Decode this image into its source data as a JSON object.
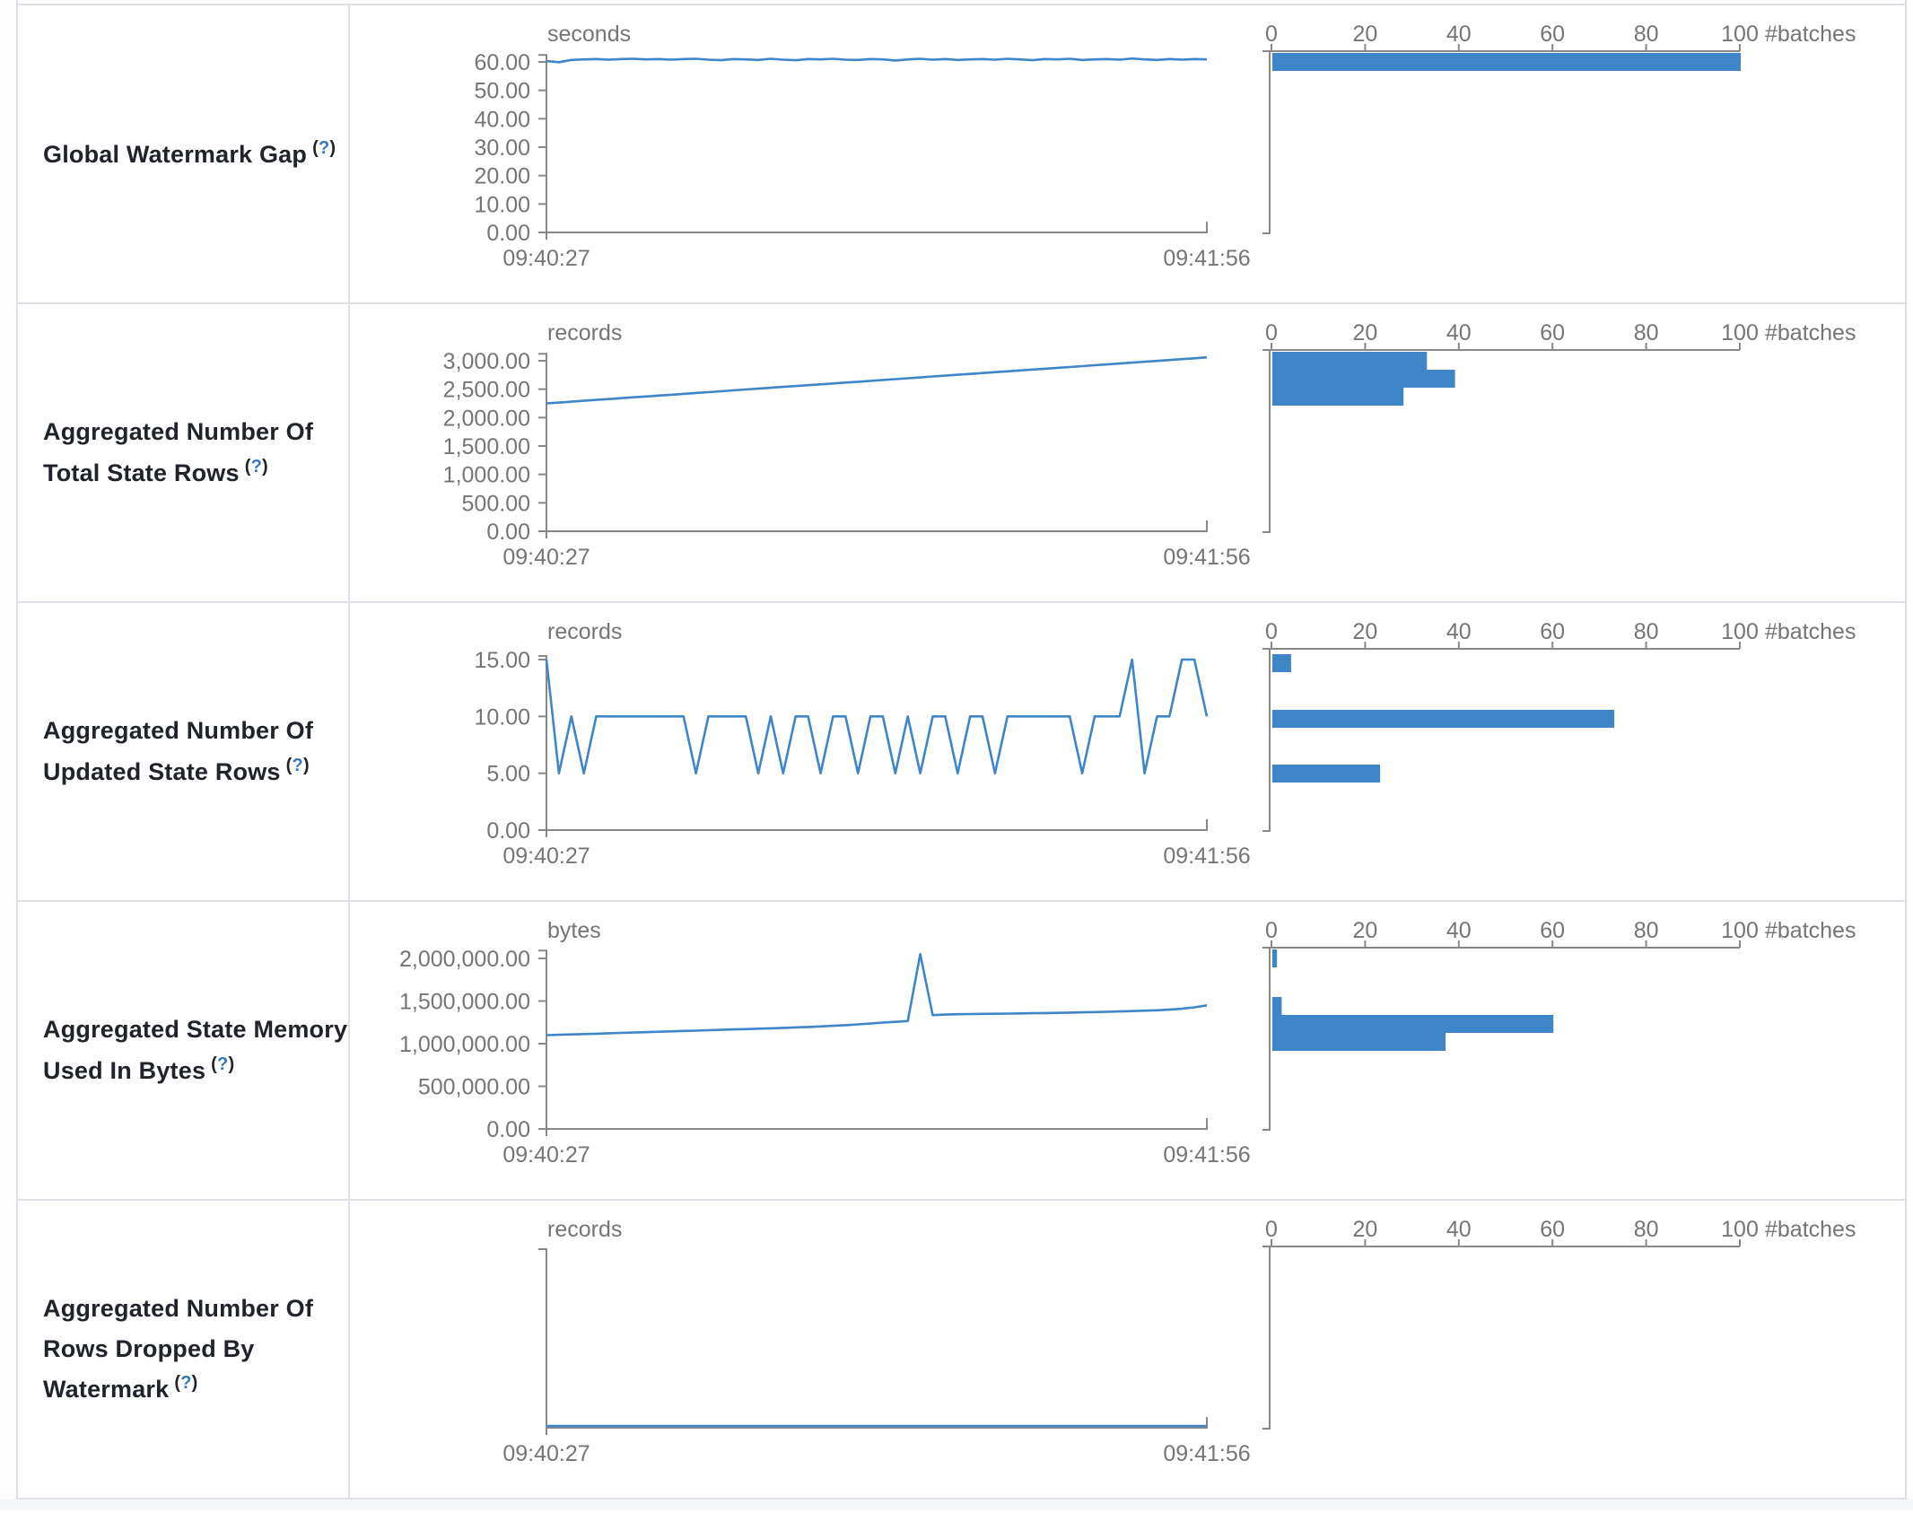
{
  "misc": {
    "paren_open": "(",
    "question_mark": "?",
    "paren_close": ")",
    "accent_blue": "#3e86c8",
    "axis_gray": "#888888",
    "text_gray": "#757575",
    "border_gray": "#dde1e6",
    "label_dark": "#20242a"
  },
  "rows": [
    {
      "label": "Global Watermark Gap",
      "timeline": {
        "unit": "seconds",
        "x_start_label": "09:40:27",
        "x_end_label": "09:41:56",
        "ymax_tick": 60,
        "yticks": [
          {
            "value": 0,
            "label": "0.00"
          },
          {
            "value": 10,
            "label": "10.00"
          },
          {
            "value": 20,
            "label": "20.00"
          },
          {
            "value": 30,
            "label": "30.00"
          },
          {
            "value": 40,
            "label": "40.00"
          },
          {
            "value": 50,
            "label": "50.00"
          },
          {
            "value": 60,
            "label": "60.00"
          }
        ],
        "values": [
          60.3,
          59.9,
          60.7,
          60.9,
          61,
          60.8,
          61,
          61.1,
          60.9,
          61,
          60.8,
          61,
          61.1,
          60.8,
          60.6,
          61,
          60.9,
          60.7,
          61.1,
          60.8,
          60.6,
          61,
          60.9,
          61.1,
          60.8,
          60.7,
          61,
          60.9,
          60.5,
          60.9,
          61.1,
          60.8,
          61,
          60.7,
          60.9,
          61,
          60.8,
          61.1,
          60.9,
          60.6,
          61,
          60.9,
          61.1,
          60.7,
          60.9,
          61,
          60.8,
          61.2,
          60.9,
          60.7,
          61,
          60.8,
          61,
          60.9
        ]
      },
      "histogram": {
        "axis_label": "#batches",
        "xticks": [
          {
            "value": 0,
            "label": "0"
          },
          {
            "value": 20,
            "label": "20"
          },
          {
            "value": 40,
            "label": "40"
          },
          {
            "value": 60,
            "label": "60"
          },
          {
            "value": 80,
            "label": "80"
          },
          {
            "value": 100,
            "label": "100"
          }
        ],
        "bars": [
          {
            "frac": 0.0,
            "count": 100
          }
        ]
      }
    },
    {
      "label": "Aggregated Number Of Total State Rows",
      "timeline": {
        "unit": "records",
        "x_start_label": "09:40:27",
        "x_end_label": "09:41:56",
        "ymax_tick": 3000,
        "yticks": [
          {
            "value": 0,
            "label": "0.00"
          },
          {
            "value": 500,
            "label": "500.00"
          },
          {
            "value": 1000,
            "label": "1,000.00"
          },
          {
            "value": 1500,
            "label": "1,500.00"
          },
          {
            "value": 2000,
            "label": "2,000.00"
          },
          {
            "value": 2500,
            "label": "2,500.00"
          },
          {
            "value": 3000,
            "label": "3,000.00"
          }
        ],
        "values": [
          2250,
          2265,
          2280,
          2296,
          2311,
          2326,
          2341,
          2357,
          2372,
          2387,
          2402,
          2418,
          2433,
          2448,
          2463,
          2479,
          2494,
          2509,
          2524,
          2540,
          2555,
          2570,
          2585,
          2601,
          2616,
          2631,
          2646,
          2662,
          2677,
          2692,
          2707,
          2723,
          2738,
          2753,
          2768,
          2784,
          2799,
          2814,
          2829,
          2845,
          2860,
          2875,
          2890,
          2906,
          2921,
          2936,
          2951,
          2967,
          2982,
          2997,
          3012,
          3028,
          3043,
          3060
        ]
      },
      "histogram": {
        "axis_label": "#batches",
        "xticks": [
          {
            "value": 0,
            "label": "0"
          },
          {
            "value": 20,
            "label": "20"
          },
          {
            "value": 40,
            "label": "40"
          },
          {
            "value": 60,
            "label": "60"
          },
          {
            "value": 80,
            "label": "80"
          },
          {
            "value": 100,
            "label": "100"
          }
        ],
        "bars": [
          {
            "frac": 0.0,
            "count": 33
          },
          {
            "frac": 0.1,
            "count": 39
          },
          {
            "frac": 0.2,
            "count": 28
          }
        ]
      }
    },
    {
      "label": "Aggregated Number Of Updated State Rows",
      "timeline": {
        "unit": "records",
        "x_start_label": "09:40:27",
        "x_end_label": "09:41:56",
        "ymax_tick": 15,
        "yticks": [
          {
            "value": 0,
            "label": "0.00"
          },
          {
            "value": 5,
            "label": "5.00"
          },
          {
            "value": 10,
            "label": "10.00"
          },
          {
            "value": 15,
            "label": "15.00"
          }
        ],
        "values": [
          15,
          5,
          10,
          5,
          10,
          10,
          10,
          10,
          10,
          10,
          10,
          10,
          5,
          10,
          10,
          10,
          10,
          5,
          10,
          5,
          10,
          10,
          5,
          10,
          10,
          5,
          10,
          10,
          5,
          10,
          5,
          10,
          10,
          5,
          10,
          10,
          5,
          10,
          10,
          10,
          10,
          10,
          10,
          5,
          10,
          10,
          10,
          15,
          5,
          10,
          10,
          15,
          15,
          10
        ]
      },
      "histogram": {
        "axis_label": "#batches",
        "xticks": [
          {
            "value": 0,
            "label": "0"
          },
          {
            "value": 20,
            "label": "20"
          },
          {
            "value": 40,
            "label": "40"
          },
          {
            "value": 60,
            "label": "60"
          },
          {
            "value": 80,
            "label": "80"
          },
          {
            "value": 100,
            "label": "100"
          }
        ],
        "bars": [
          {
            "frac": 0.02,
            "count": 4
          },
          {
            "frac": 0.33,
            "count": 73
          },
          {
            "frac": 0.635,
            "count": 23
          }
        ]
      }
    },
    {
      "label": "Aggregated State Memory Used In Bytes",
      "timeline": {
        "unit": "bytes",
        "x_start_label": "09:40:27",
        "x_end_label": "09:41:56",
        "ymax_tick": 2000000,
        "yticks": [
          {
            "value": 0,
            "label": "0.00"
          },
          {
            "value": 500000,
            "label": "500,000.00"
          },
          {
            "value": 1000000,
            "label": "1,000,000.00"
          },
          {
            "value": 1500000,
            "label": "1,500,000.00"
          },
          {
            "value": 2000000,
            "label": "2,000,000.00"
          }
        ],
        "values": [
          1100000,
          1104000,
          1108000,
          1113000,
          1117000,
          1122000,
          1126000,
          1131000,
          1135000,
          1140000,
          1144000,
          1149000,
          1153000,
          1158000,
          1162000,
          1167000,
          1171000,
          1176000,
          1180000,
          1185000,
          1190000,
          1196000,
          1202000,
          1209000,
          1217000,
          1226000,
          1236000,
          1247000,
          1256000,
          1265000,
          2050000,
          1335000,
          1341000,
          1345000,
          1347000,
          1349000,
          1351000,
          1353000,
          1355000,
          1357000,
          1359000,
          1361000,
          1364000,
          1367000,
          1370000,
          1374000,
          1378000,
          1382000,
          1387000,
          1392000,
          1399000,
          1409000,
          1426000,
          1450000
        ]
      },
      "histogram": {
        "axis_label": "#batches",
        "xticks": [
          {
            "value": 0,
            "label": "0"
          },
          {
            "value": 20,
            "label": "20"
          },
          {
            "value": 40,
            "label": "40"
          },
          {
            "value": 60,
            "label": "60"
          },
          {
            "value": 80,
            "label": "80"
          },
          {
            "value": 100,
            "label": "100"
          }
        ],
        "bars": [
          {
            "frac": 0.0,
            "count": 1
          },
          {
            "frac": 0.265,
            "count": 2
          },
          {
            "frac": 0.365,
            "count": 60
          },
          {
            "frac": 0.465,
            "count": 37
          }
        ]
      }
    },
    {
      "label": "Aggregated Number Of Rows Dropped By Watermark",
      "timeline": {
        "unit": "records",
        "x_start_label": "09:40:27",
        "x_end_label": "09:41:56",
        "ymax_tick": 1,
        "yticks": [],
        "values": [
          0,
          0,
          0,
          0,
          0,
          0,
          0,
          0,
          0,
          0,
          0,
          0,
          0,
          0,
          0,
          0,
          0,
          0,
          0,
          0,
          0,
          0,
          0,
          0,
          0,
          0,
          0,
          0,
          0,
          0,
          0,
          0,
          0,
          0,
          0,
          0,
          0,
          0,
          0,
          0,
          0,
          0,
          0,
          0,
          0,
          0,
          0,
          0,
          0,
          0,
          0,
          0,
          0,
          0
        ]
      },
      "histogram": {
        "axis_label": "#batches",
        "xticks": [
          {
            "value": 0,
            "label": "0"
          },
          {
            "value": 20,
            "label": "20"
          },
          {
            "value": 40,
            "label": "40"
          },
          {
            "value": 60,
            "label": "60"
          },
          {
            "value": 80,
            "label": "80"
          },
          {
            "value": 100,
            "label": "100"
          }
        ],
        "bars": []
      }
    }
  ],
  "chart_data": [
    {
      "type": "line",
      "title": "Global Watermark Gap",
      "ylabel": "seconds",
      "x": [
        "09:40:27",
        "09:41:56"
      ],
      "ylim": [
        0,
        60
      ],
      "note": "flat near 60-61s across window"
    },
    {
      "type": "line",
      "title": "Aggregated Number Of Total State Rows",
      "ylabel": "records",
      "x": [
        "09:40:27",
        "09:41:56"
      ],
      "ylim": [
        0,
        3000
      ],
      "note": "linear rise 2250 to 3060"
    },
    {
      "type": "line",
      "title": "Aggregated Number Of Updated State Rows",
      "ylabel": "records",
      "x": [
        "09:40:27",
        "09:41:56"
      ],
      "ylim": [
        0,
        15
      ],
      "note": "oscillates 10/5 with 15 spikes at start and end"
    },
    {
      "type": "line",
      "title": "Aggregated State Memory Used In Bytes",
      "ylabel": "bytes",
      "x": [
        "09:40:27",
        "09:41:56"
      ],
      "ylim": [
        0,
        2000000
      ],
      "note": "rise 1.1M to 1.45M with single 2.05M spike"
    },
    {
      "type": "line",
      "title": "Aggregated Number Of Rows Dropped By Watermark",
      "ylabel": "records",
      "x": [
        "09:40:27",
        "09:41:56"
      ],
      "note": "all zeros"
    },
    {
      "type": "bar",
      "orientation": "horizontal",
      "title": "batch histograms",
      "xlabel": "#batches",
      "xlim": [
        0,
        100
      ],
      "series": [
        {
          "name": "Global Watermark Gap",
          "values": [
            100
          ]
        },
        {
          "name": "Aggregated Number Of Total State Rows",
          "values": [
            33,
            39,
            28
          ]
        },
        {
          "name": "Aggregated Number Of Updated State Rows",
          "values": [
            4,
            73,
            23
          ]
        },
        {
          "name": "Aggregated State Memory Used In Bytes",
          "values": [
            1,
            2,
            60,
            37
          ]
        },
        {
          "name": "Aggregated Number Of Rows Dropped By Watermark",
          "values": []
        }
      ]
    }
  ]
}
